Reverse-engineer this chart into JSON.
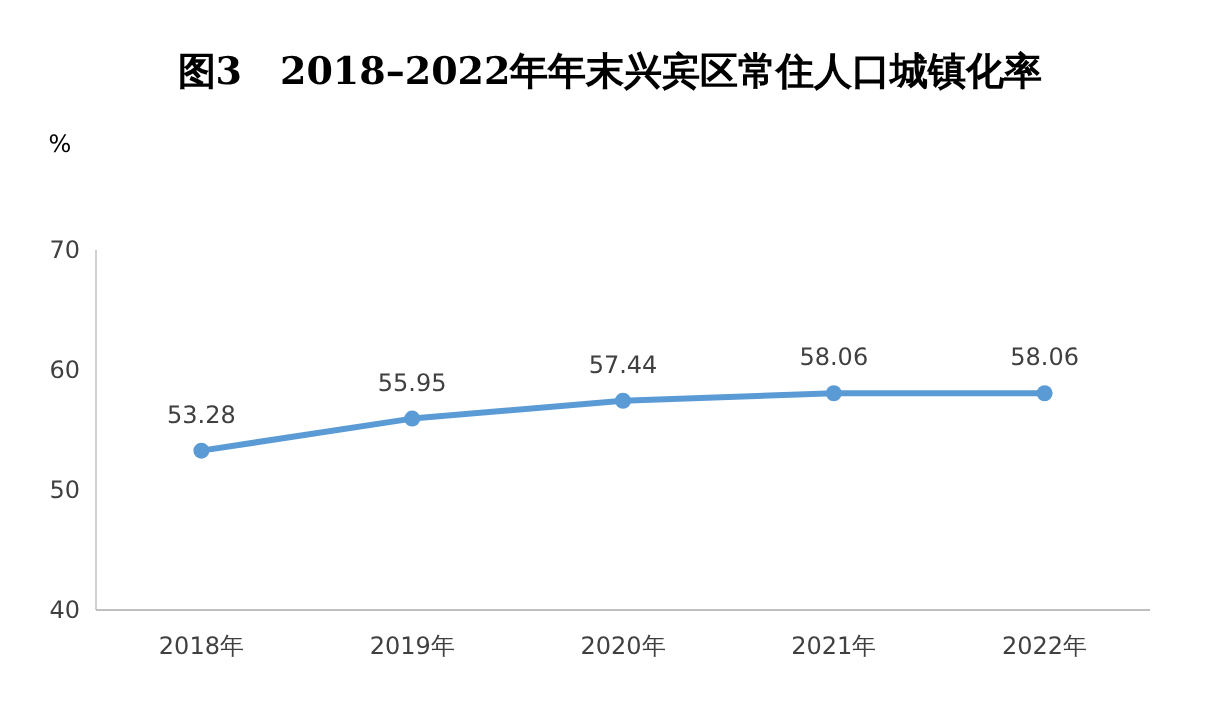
{
  "chart_data": {
    "type": "line",
    "title": "图3　2018–2022年年末兴宾区常住人口城镇化率",
    "ylabel": "%",
    "categories": [
      "2018年",
      "2019年",
      "2020年",
      "2021年",
      "2022年"
    ],
    "series": [
      {
        "color": "#5b9bd5",
        "values": [
          53.28,
          55.95,
          57.44,
          58.06,
          58.06
        ]
      }
    ],
    "ylim": [
      40,
      70
    ],
    "yticks": [
      40,
      50,
      60,
      70
    ],
    "data_labels": true,
    "marker": "circle",
    "line_style": "solid",
    "grid": false
  }
}
